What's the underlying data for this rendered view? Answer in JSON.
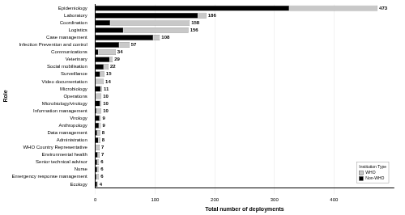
{
  "chart_data": {
    "type": "bar",
    "orientation": "horizontal",
    "stacked": true,
    "x_label": "Total number of deployments",
    "y_label": "Role",
    "categories": [
      "Epidemiology",
      "Laboratory",
      "Coordination",
      "Logistics",
      "Case management",
      "Infection Prevention and control",
      "Communications",
      "Veterinary",
      "Social mobilisation",
      "Surveillance",
      "Video documentation",
      "Microbiology",
      "Operations",
      "Microbiology/virology",
      "Information management",
      "Virology",
      "Anthropology",
      "Data management",
      "Administration",
      "WHO Country Representative",
      "Environmental health",
      "Senior technical advisor",
      "Nurse",
      "Emergency response management",
      "Ecology"
    ],
    "series": [
      {
        "name": "Non-WHO",
        "color": "#000000",
        "values": [
          325,
          172,
          25,
          47,
          97,
          40,
          5,
          24,
          14,
          8,
          0,
          9,
          1,
          8,
          2,
          7,
          6,
          3,
          5,
          0,
          4,
          3,
          3,
          2,
          3
        ]
      },
      {
        "name": "WHO",
        "color": "#c8c8c8",
        "values": [
          148,
          14,
          133,
          109,
          11,
          17,
          29,
          5,
          8,
          7,
          14,
          2,
          9,
          2,
          8,
          2,
          3,
          5,
          3,
          7,
          3,
          3,
          3,
          4,
          1
        ]
      }
    ],
    "totals": [
      473,
      186,
      158,
      156,
      108,
      57,
      34,
      29,
      22,
      15,
      14,
      11,
      10,
      10,
      10,
      9,
      9,
      8,
      8,
      7,
      7,
      6,
      6,
      6,
      4
    ],
    "data_labels": true,
    "legend": "lower right",
    "legend_title": "Institution Type",
    "legend_order": [
      "WHO",
      "Non-WHO"
    ],
    "xlim": [
      0,
      500
    ],
    "xticks": [
      0,
      100,
      200,
      300,
      400
    ],
    "grid": true
  }
}
